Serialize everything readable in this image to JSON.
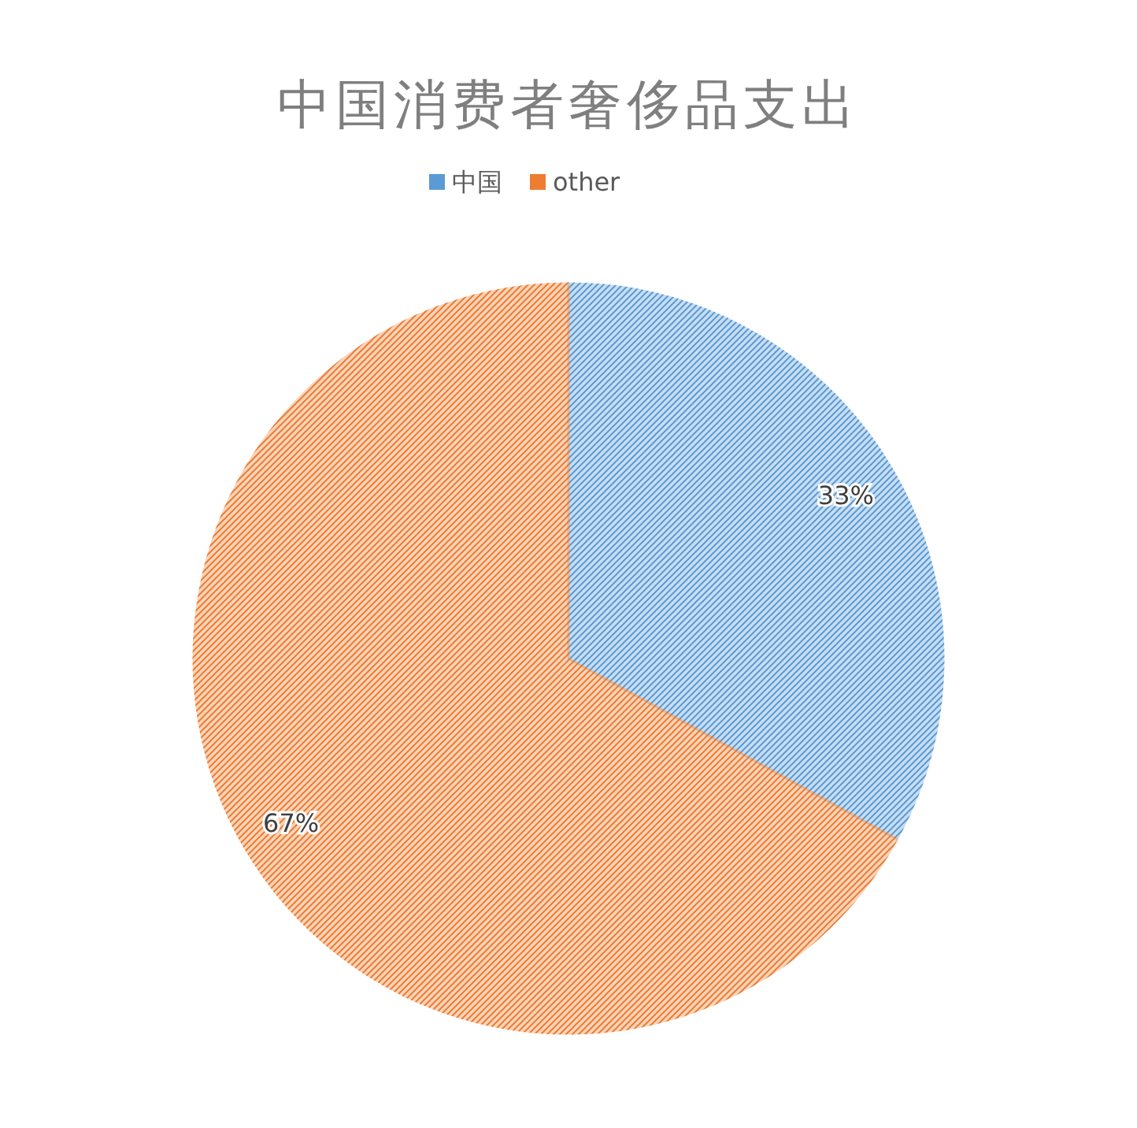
{
  "chart_data": {
    "type": "pie",
    "title": "中国消费者奢侈品支出",
    "categories": [
      "中国",
      "other"
    ],
    "values": [
      33,
      67
    ],
    "colors": [
      "#5b9bd5",
      "#ed7d31"
    ],
    "value_labels": [
      "33%",
      "67%"
    ],
    "data_labels": true,
    "legend": "top"
  }
}
